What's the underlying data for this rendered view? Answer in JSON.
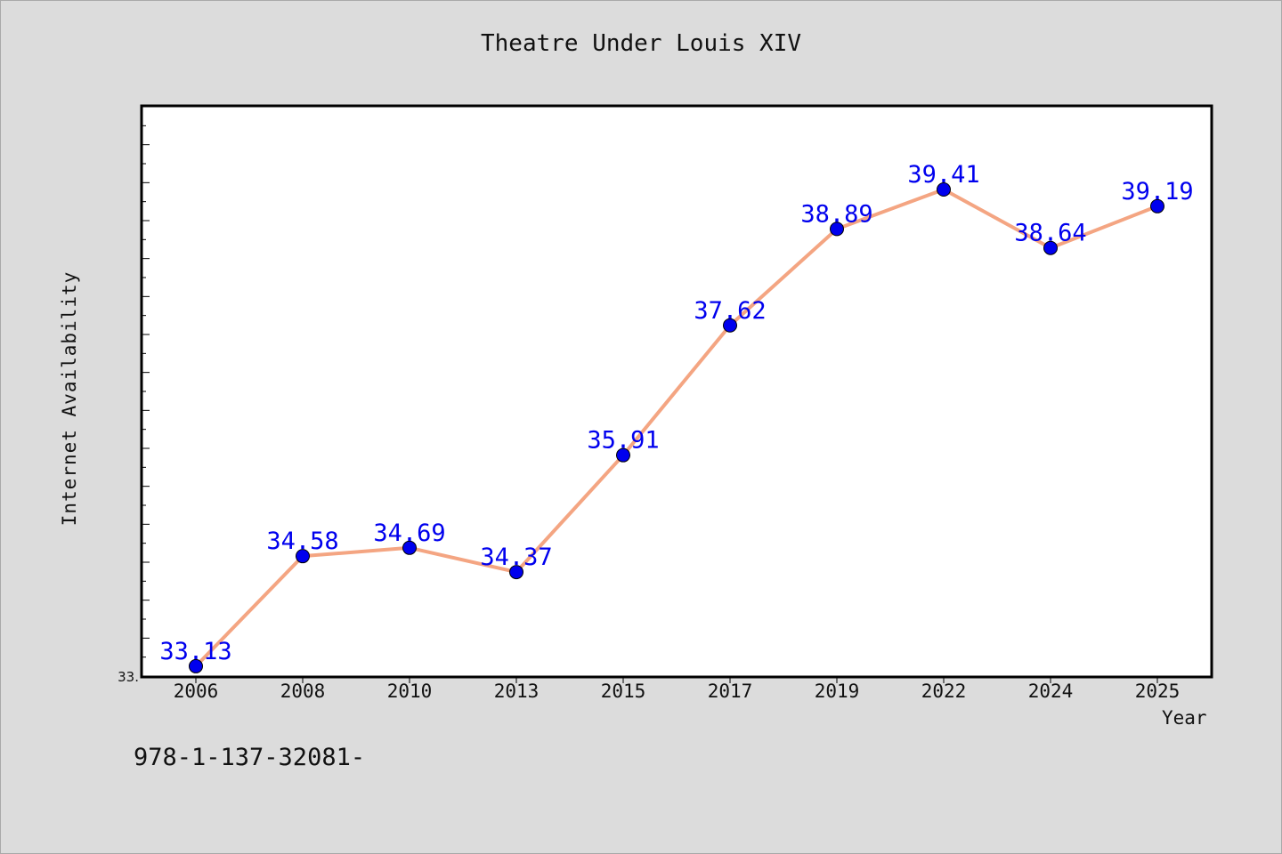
{
  "chart_data": {
    "type": "line",
    "title": "Theatre Under Louis XIV",
    "xlabel": "Year",
    "ylabel": "Internet Availability",
    "categories": [
      "2006",
      "2008",
      "2010",
      "2013",
      "2015",
      "2017",
      "2019",
      "2022",
      "2024",
      "2025"
    ],
    "series": [
      {
        "values": [
          33.13,
          34.58,
          34.69,
          34.37,
          35.91,
          37.62,
          38.89,
          39.41,
          38.64,
          39.19
        ]
      }
    ],
    "data_labels": [
      "33.13",
      "34.58",
      "34.69",
      "34.37",
      "35.91",
      "37.62",
      "38.89",
      "39.41",
      "38.64",
      "39.19"
    ],
    "ylim": [
      33.0,
      40.5
    ],
    "y_tick_label": "33.",
    "grid": false,
    "line_color": "#f4a582",
    "marker_color": "#0000ee",
    "label_color": "#0000ee"
  },
  "footnote": "978-1-137-32081-"
}
